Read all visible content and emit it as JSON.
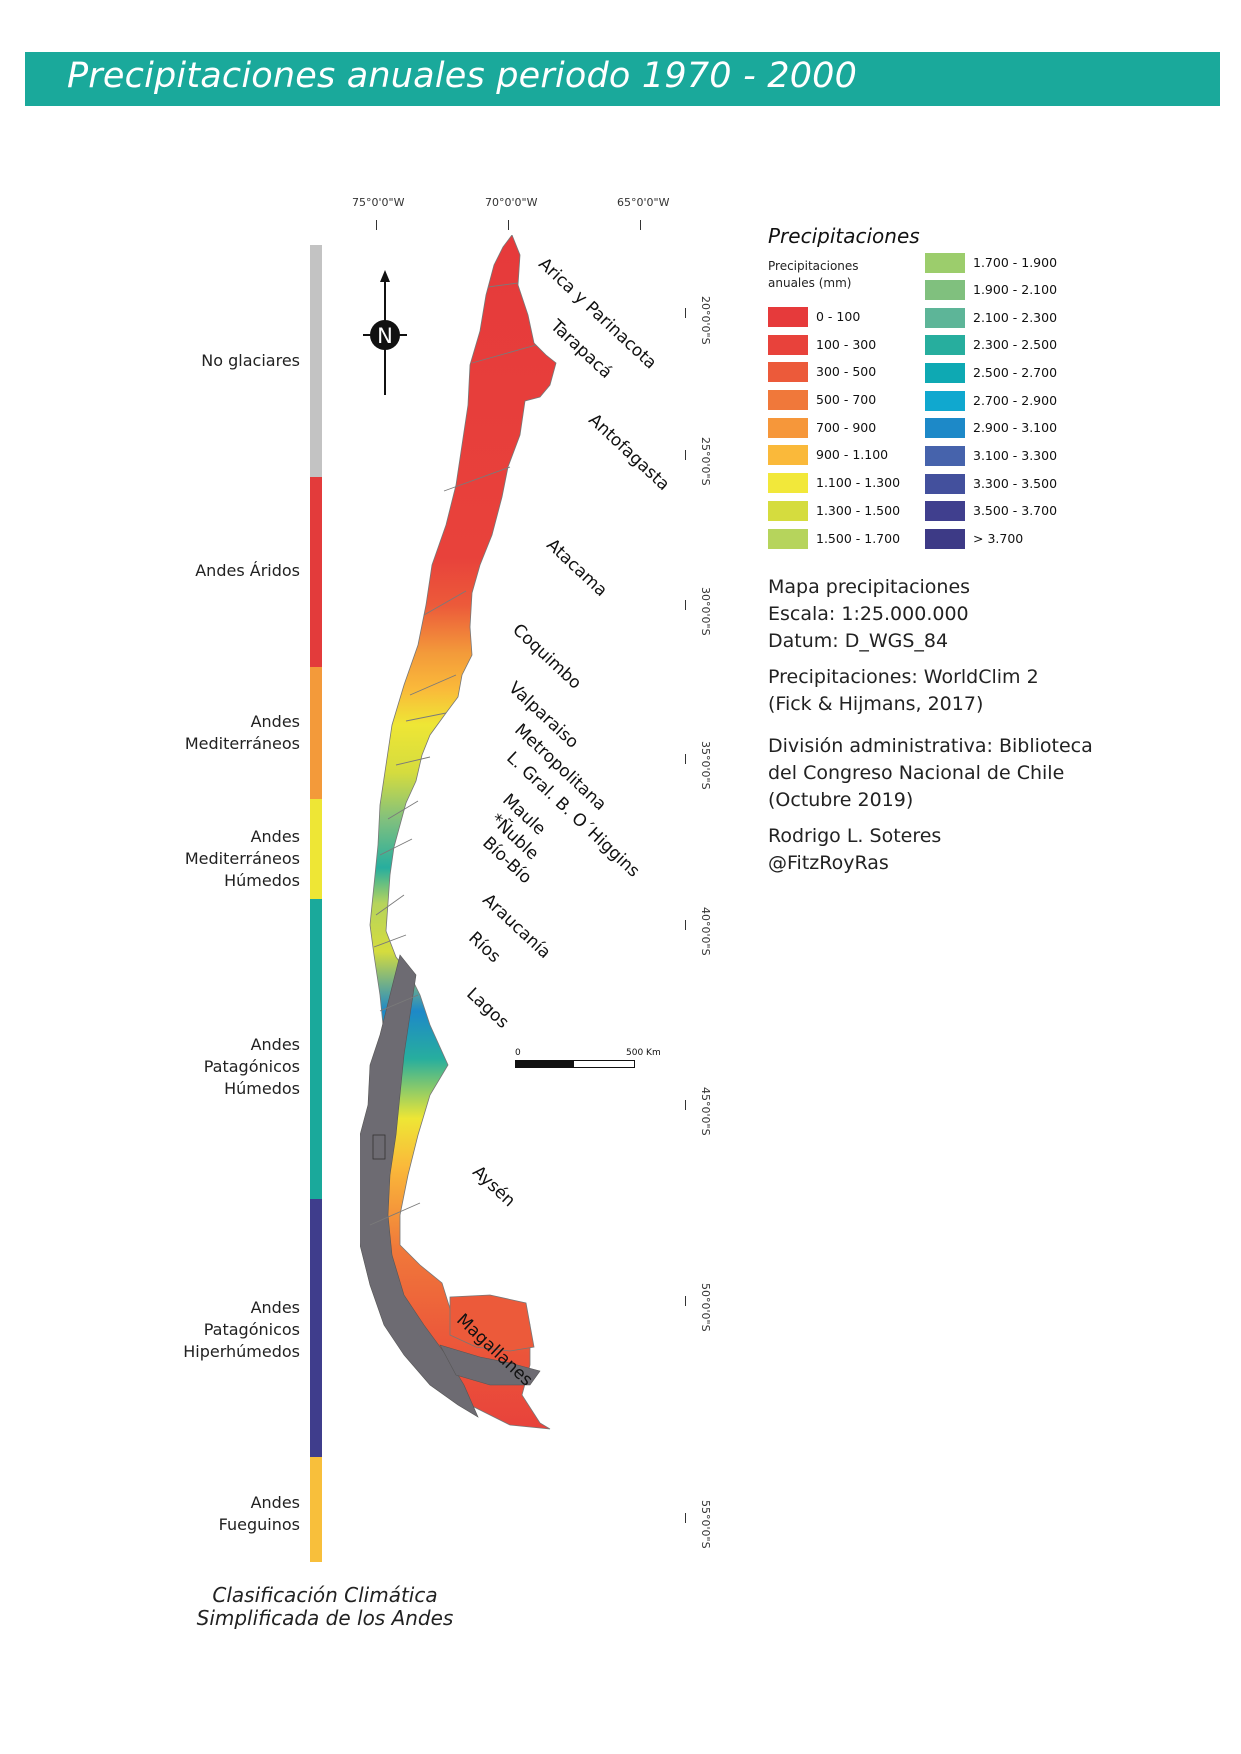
{
  "title": "Precipitaciones anuales periodo 1970 - 2000",
  "longitudes": [
    "75°0'0\"W",
    "70°0'0\"W",
    "65°0'0\"W"
  ],
  "latitudes": [
    "20°0'0\"S",
    "25°0'0\"S",
    "30°0'0\"S",
    "35°0'0\"S",
    "40°0'0\"S",
    "45°0'0\"S",
    "50°0'0\"S",
    "55°0'0\"S"
  ],
  "climate_bar": [
    {
      "label": "No glaciares",
      "color": "#c3c3c3",
      "share": 0.176
    },
    {
      "label": "Andes Áridos",
      "color": "#e33b3b",
      "share": 0.144
    },
    {
      "label": "Andes\nMediterráneos",
      "color": "#f39a3a",
      "share": 0.1
    },
    {
      "label": "Andes\nMediterráneos\nHúmedos",
      "color": "#eee635",
      "share": 0.076
    },
    {
      "label": "Andes\nPatagónicos\nHúmedos",
      "color": "#1aa99b",
      "share": 0.228
    },
    {
      "label": "Andes\nPatagónicos\nHiperhúmedos",
      "color": "#3f3d8c",
      "share": 0.196
    },
    {
      "label": "Andes\nFueguinos",
      "color": "#f8bf3b",
      "share": 0.08
    }
  ],
  "climate_title": "Clasificación Climática\nSimplificada de los Andes",
  "regions": [
    "Arica y Parinacota",
    "Tarapacá",
    "Antofagasta",
    "Atacama",
    "Coquimbo",
    "Valparaiso",
    "Metropolitana",
    "L. Gral. B. O´Higgins",
    "Maule",
    "*Ñuble",
    "Bío-Bío",
    "Araucanía",
    "Ríos",
    "Lagos",
    "Aysén",
    "Magallanes"
  ],
  "compass_letter": "N",
  "scale_bar": {
    "start": "0",
    "end": "500 Km"
  },
  "legend": {
    "title": "Precipitaciones",
    "subtitle": "Precipitaciones\nanuales (mm)",
    "items": [
      {
        "label": "0 - 100",
        "color": "#e63a3b"
      },
      {
        "label": "100 - 300",
        "color": "#e8423b"
      },
      {
        "label": "300 - 500",
        "color": "#ec5a3a"
      },
      {
        "label": "500 - 700",
        "color": "#f0783a"
      },
      {
        "label": "700 - 900",
        "color": "#f6973a"
      },
      {
        "label": "900 - 1.100",
        "color": "#fab93a"
      },
      {
        "label": "1.100 - 1.300",
        "color": "#f2e83a"
      },
      {
        "label": "1.300 - 1.500",
        "color": "#d5dc3e"
      },
      {
        "label": "1.500 - 1.700",
        "color": "#b6d45c"
      },
      {
        "label": "1.700 - 1.900",
        "color": "#9ccd6c"
      },
      {
        "label": "1.900 - 2.100",
        "color": "#80c07e"
      },
      {
        "label": "2.100 - 2.300",
        "color": "#5db598"
      },
      {
        "label": "2.300 - 2.500",
        "color": "#27ae9e"
      },
      {
        "label": "2.500 - 2.700",
        "color": "#0ea9b3"
      },
      {
        "label": "2.700 - 2.900",
        "color": "#10a8cf"
      },
      {
        "label": "2.900 - 3.100",
        "color": "#1d89c8"
      },
      {
        "label": "3.100 - 3.300",
        "color": "#4663ac"
      },
      {
        "label": "3.300 - 3.500",
        "color": "#43509d"
      },
      {
        "label": "3.500 - 3.700",
        "color": "#403f8e"
      },
      {
        "label": "> 3.700",
        "color": "#3d3a86"
      }
    ]
  },
  "info": {
    "map_meta": "Mapa precipitaciones\nEscala: 1:25.000.000\nDatum: D_WGS_84",
    "source": "Precipitaciones: WorldClim 2\n(Fick & Hijmans, 2017)",
    "admin": "División administrativa: Biblioteca\ndel Congreso Nacional  de Chile\n(Octubre 2019)",
    "author": "Rodrigo L. Soteres\n@FitzRoyRas"
  }
}
